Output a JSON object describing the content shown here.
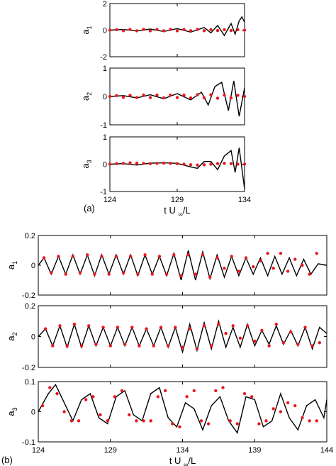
{
  "figure": {
    "panel_a_label": "(a)",
    "panel_b_label": "(b)",
    "xlabel_main": "t U",
    "xlabel_sub": "∞",
    "xlabel_tail": "/L"
  },
  "colors": {
    "reference": "#000000",
    "model": "#e8191c",
    "frame": "#000000"
  },
  "chart_data": [
    {
      "type": "line",
      "panel": "(a)",
      "xlim": [
        124,
        134
      ],
      "xticks": [
        "124",
        "129",
        "134"
      ],
      "subplots": [
        {
          "ylabel": "a",
          "ylabel_sub": "1",
          "ylim": [
            -2,
            2
          ],
          "yticks": [
            "2",
            "0",
            "-2"
          ],
          "series": [
            {
              "style": "line",
              "x": [
                124,
                125,
                126,
                127,
                128,
                129,
                130,
                131,
                131.5,
                132,
                132.5,
                133,
                133.3,
                133.6,
                133.8,
                134
              ],
              "y": [
                0,
                0.05,
                -0.05,
                0.08,
                -0.1,
                0.12,
                -0.15,
                0.2,
                -0.2,
                0.35,
                -0.4,
                0.5,
                -0.3,
                0.7,
                1.0,
                0.6
              ]
            },
            {
              "style": "markers",
              "x": [
                124,
                124.5,
                125,
                125.5,
                126,
                126.5,
                127,
                127.5,
                128,
                128.5,
                129,
                129.5,
                130,
                130.5,
                131,
                131.5,
                132,
                132.5,
                133,
                133.5,
                134
              ],
              "y": [
                0,
                0.04,
                -0.04,
                0.05,
                -0.05,
                0.06,
                -0.05,
                0.05,
                -0.05,
                0.06,
                -0.05,
                0.05,
                -0.04,
                0.05,
                -0.04,
                0.04,
                -0.03,
                0.04,
                -0.03,
                0.03,
                0
              ]
            }
          ]
        },
        {
          "ylabel": "a",
          "ylabel_sub": "2",
          "ylim": [
            -1,
            1
          ],
          "yticks": [
            "1",
            "0",
            "-1"
          ],
          "series": [
            {
              "style": "line",
              "x": [
                124,
                125,
                126,
                127,
                128,
                129,
                130,
                130.8,
                131.3,
                131.8,
                132.3,
                132.8,
                133.2,
                133.6,
                134
              ],
              "y": [
                0,
                0.03,
                -0.05,
                0.06,
                -0.08,
                0.1,
                -0.12,
                0.15,
                -0.3,
                0.35,
                0.5,
                -0.5,
                0.55,
                -0.7,
                0.3
              ]
            },
            {
              "style": "markers",
              "x": [
                124,
                124.5,
                125,
                125.5,
                126,
                126.5,
                127,
                127.5,
                128,
                128.5,
                129,
                129.5,
                130,
                130.5,
                131,
                131.5,
                132,
                132.5,
                133,
                133.5,
                134
              ],
              "y": [
                0,
                0.03,
                -0.03,
                0.04,
                -0.04,
                0.05,
                -0.04,
                0.05,
                -0.05,
                0.05,
                -0.04,
                0.05,
                -0.05,
                0.06,
                -0.05,
                0.06,
                -0.06,
                0.05,
                -0.05,
                0.04,
                0
              ]
            }
          ]
        },
        {
          "ylabel": "a",
          "ylabel_sub": "3",
          "ylim": [
            -1,
            1
          ],
          "yticks": [
            "1",
            "0",
            "-1"
          ],
          "series": [
            {
              "style": "line",
              "x": [
                124,
                125,
                126,
                127,
                128,
                129,
                130,
                130.5,
                131,
                131.5,
                132,
                132.5,
                133,
                133.3,
                133.6,
                134
              ],
              "y": [
                0,
                0.02,
                -0.03,
                0.04,
                0.05,
                0.03,
                -0.1,
                -0.15,
                0.1,
                0.1,
                -0.2,
                0.3,
                0.5,
                -0.3,
                0.6,
                -0.9
              ]
            },
            {
              "style": "markers",
              "x": [
                124,
                124.5,
                125,
                125.5,
                126,
                126.5,
                127,
                127.5,
                128,
                128.5,
                129,
                129.5,
                130,
                130.5,
                131,
                131.5,
                132,
                132.5,
                133,
                133.5,
                134
              ],
              "y": [
                0,
                0.02,
                0.03,
                0.05,
                0.04,
                0.03,
                0.02,
                0.03,
                0.04,
                0.03,
                0.02,
                0,
                -0.02,
                -0.03,
                -0.02,
                0,
                0.02,
                0.03,
                0.02,
                0,
                0
              ]
            }
          ]
        }
      ]
    },
    {
      "type": "line",
      "panel": "(b)",
      "xlim": [
        124,
        144
      ],
      "xticks": [
        "124",
        "129",
        "134",
        "139",
        "144"
      ],
      "subplots": [
        {
          "ylabel": "a",
          "ylabel_sub": "1",
          "ylim": [
            -0.2,
            0.2
          ],
          "yticks": [
            "0.2",
            "0",
            "-0.2"
          ],
          "series": [
            {
              "style": "line",
              "x": [
                124,
                124.4,
                124.9,
                125.4,
                125.9,
                126.4,
                126.9,
                127.4,
                127.9,
                128.4,
                128.9,
                129.4,
                129.9,
                130.4,
                130.9,
                131.4,
                131.9,
                132.4,
                132.9,
                133.4,
                133.9,
                134.4,
                134.9,
                135.4,
                135.9,
                136.4,
                136.9,
                137.4,
                137.9,
                138.4,
                138.9,
                139.4,
                139.9,
                140.4,
                140.9,
                141.4,
                141.9,
                142.4,
                142.9,
                143.4,
                144
              ],
              "y": [
                0,
                0.05,
                -0.06,
                0.06,
                -0.06,
                0.07,
                -0.06,
                0.07,
                -0.07,
                0.07,
                -0.06,
                0.07,
                -0.06,
                0.07,
                -0.07,
                0.07,
                -0.06,
                0.06,
                -0.07,
                0.08,
                -0.1,
                0.1,
                -0.1,
                0.09,
                -0.09,
                0.07,
                -0.08,
                0.06,
                -0.07,
                0.05,
                -0.06,
                0.05,
                -0.07,
                0.06,
                -0.06,
                0.05,
                -0.07,
                0.04,
                -0.06,
                0.01,
                0
              ]
            },
            {
              "style": "markers",
              "x": [
                124.4,
                124.9,
                125.4,
                125.9,
                126.4,
                126.9,
                127.4,
                127.9,
                128.4,
                128.9,
                129.4,
                129.9,
                130.4,
                130.9,
                131.4,
                131.9,
                132.4,
                132.9,
                133.4,
                133.9,
                134.4,
                134.9,
                135.4,
                135.9,
                136.4,
                136.9,
                137.4,
                137.9,
                138.4,
                138.9,
                139.4,
                139.9,
                140.3,
                140.8,
                141.3,
                141.8,
                142.3,
                142.8,
                143.3
              ],
              "y": [
                0.05,
                -0.05,
                0.06,
                -0.06,
                0.06,
                -0.05,
                0.07,
                -0.06,
                0.06,
                -0.06,
                0.06,
                -0.05,
                0.06,
                -0.06,
                0.07,
                -0.06,
                0.06,
                -0.06,
                0.07,
                -0.07,
                0.07,
                -0.06,
                0.07,
                -0.08,
                0.05,
                -0.02,
                0.06,
                -0.04,
                0.05,
                -0.01,
                0.03,
                0.08,
                -0.02,
                0.08,
                -0.04,
                0.04,
                0,
                -0.06,
                0.08
              ]
            }
          ]
        },
        {
          "ylabel": "a",
          "ylabel_sub": "2",
          "ylim": [
            -0.2,
            0.2
          ],
          "yticks": [
            "0.2",
            "0",
            "-0.2"
          ],
          "series": [
            {
              "style": "line",
              "x": [
                124,
                124.5,
                125,
                125.5,
                126,
                126.5,
                127,
                127.5,
                128,
                128.5,
                129,
                129.5,
                130,
                130.5,
                131,
                131.5,
                132,
                132.5,
                133,
                133.5,
                134,
                134.5,
                135,
                135.5,
                136,
                136.5,
                137,
                137.5,
                138,
                138.5,
                139,
                139.5,
                140,
                140.5,
                141,
                141.5,
                142,
                142.5,
                143,
                143.5,
                144
              ],
              "y": [
                0,
                0.05,
                -0.06,
                0.07,
                -0.07,
                0.08,
                -0.07,
                0.07,
                -0.06,
                0.06,
                -0.06,
                0.06,
                -0.06,
                0.06,
                -0.06,
                0.05,
                -0.06,
                0.06,
                -0.07,
                0.06,
                -0.1,
                0.08,
                -0.09,
                0.09,
                -0.08,
                0.1,
                -0.07,
                0.06,
                -0.07,
                0.08,
                -0.06,
                0.04,
                -0.05,
                0.07,
                -0.05,
                0.04,
                -0.06,
                0.06,
                -0.08,
                0.06,
                0.02
              ]
            },
            {
              "style": "markers",
              "x": [
                124.5,
                125,
                125.5,
                126,
                126.5,
                127,
                127.5,
                128,
                128.5,
                129,
                129.5,
                130,
                130.5,
                131,
                131.5,
                132,
                132.5,
                133,
                133.5,
                134,
                134.5,
                135,
                135.5,
                136,
                136.5,
                137,
                137.5,
                138,
                138.5,
                139,
                139.5,
                140,
                140.5,
                141,
                141.5,
                142,
                142.5,
                143,
                143.5
              ],
              "y": [
                0.05,
                -0.06,
                0.07,
                -0.06,
                0.08,
                -0.06,
                0.07,
                -0.05,
                0.06,
                -0.06,
                0.06,
                -0.05,
                0.06,
                -0.06,
                0.05,
                -0.06,
                0.06,
                -0.06,
                0.06,
                -0.07,
                0.05,
                -0.08,
                0.07,
                -0.06,
                0.08,
                0.02,
                0.07,
                -0.01,
                0.07,
                -0.03,
                0.04,
                -0.06,
                0.08,
                -0.04,
                0.03,
                -0.05,
                0.06,
                -0.06,
                -0.04
              ]
            }
          ]
        },
        {
          "ylabel": "a",
          "ylabel_sub": "3",
          "ylim": [
            -0.1,
            0.1
          ],
          "yticks": [
            "0.1",
            "0",
            "-0.1"
          ],
          "series": [
            {
              "style": "line",
              "x": [
                124,
                124.7,
                125.2,
                125.8,
                126.4,
                127,
                127.6,
                128.2,
                128.8,
                129.4,
                130,
                130.6,
                131.2,
                131.8,
                132.4,
                133,
                133.6,
                134.2,
                134.8,
                135.4,
                136,
                136.6,
                137.2,
                137.8,
                138.4,
                139,
                139.6,
                140.2,
                140.8,
                141.4,
                142,
                142.6,
                143.2,
                143.8,
                144
              ],
              "y": [
                0,
                0.06,
                0.09,
                0.03,
                -0.03,
                0.04,
                0.06,
                -0.02,
                -0.04,
                0.05,
                0.07,
                -0.01,
                -0.03,
                0.06,
                0.08,
                -0.02,
                -0.05,
                0.03,
                0.01,
                -0.06,
                0.02,
                0.05,
                -0.03,
                -0.07,
                0.05,
                0.04,
                -0.05,
                -0.03,
                0.06,
                -0.02,
                -0.06,
                0.02,
                0.04,
                -0.02,
                0.04
              ]
            },
            {
              "style": "markers",
              "x": [
                124.3,
                124.8,
                125.3,
                125.8,
                126.3,
                126.8,
                127.3,
                127.8,
                128.3,
                128.8,
                129.3,
                129.8,
                130.3,
                130.8,
                131.3,
                131.8,
                132.3,
                132.8,
                133.3,
                133.8,
                134.3,
                134.8,
                135.3,
                135.8,
                136.3,
                136.8,
                137.3,
                137.8,
                138.3,
                138.8,
                139.3,
                139.8,
                140.3,
                140.8,
                141.3,
                141.8,
                142.3,
                142.8,
                143.3
              ],
              "y": [
                0.02,
                0.08,
                0.06,
                0,
                -0.03,
                -0.03,
                0.04,
                0.05,
                -0.01,
                -0.03,
                0.05,
                0.07,
                -0.01,
                -0.03,
                -0.03,
                -0.03,
                0.05,
                0.07,
                -0.04,
                -0.05,
                0.05,
                0.07,
                -0.03,
                -0.04,
                0.07,
                0.08,
                -0.03,
                -0.04,
                0.06,
                0.05,
                -0.04,
                -0.03,
                0.01,
                0,
                0.03,
                0.02,
                -0.02,
                -0.03,
                -0.03
              ]
            }
          ]
        }
      ]
    }
  ]
}
